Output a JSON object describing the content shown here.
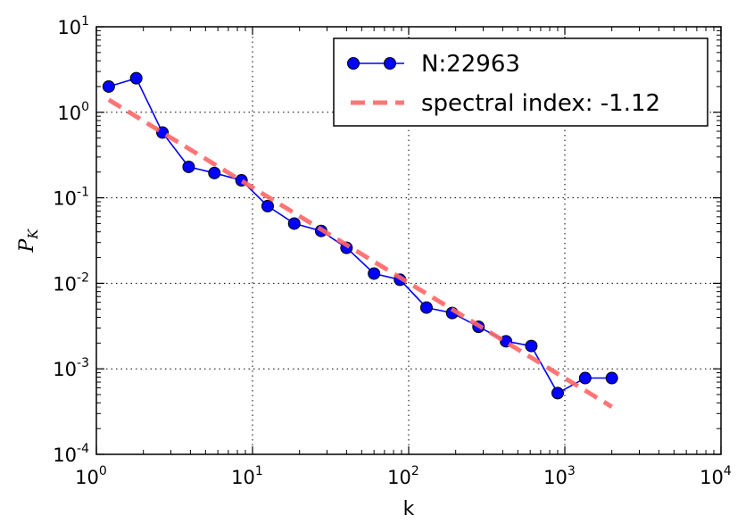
{
  "chart_data": {
    "type": "line",
    "xscale": "log",
    "yscale": "log",
    "xlim": [
      1,
      10000
    ],
    "ylim": [
      0.0001,
      10
    ],
    "xlabel": "k",
    "ylabel": "P",
    "ylabel_subscript": "K",
    "grid": true,
    "legend_position": "top-right",
    "x_ticks": [
      {
        "base": "10",
        "exp": "0"
      },
      {
        "base": "10",
        "exp": "1"
      },
      {
        "base": "10",
        "exp": "2"
      },
      {
        "base": "10",
        "exp": "3"
      },
      {
        "base": "10",
        "exp": "4"
      }
    ],
    "y_ticks": [
      {
        "base": "10",
        "exp": "-4"
      },
      {
        "base": "10",
        "exp": "-3"
      },
      {
        "base": "10",
        "exp": "-2"
      },
      {
        "base": "10",
        "exp": "-1"
      },
      {
        "base": "10",
        "exp": "0"
      },
      {
        "base": "10",
        "exp": "1"
      }
    ],
    "series": [
      {
        "name": "N:22963",
        "style": "line-markers",
        "color": "#0000ff",
        "x": [
          1.2,
          1.8,
          2.65,
          3.9,
          5.7,
          8.5,
          12.5,
          18.5,
          27.5,
          40,
          60,
          88,
          130,
          190,
          280,
          420,
          610,
          900,
          1350,
          2000
        ],
        "y": [
          2.0,
          2.5,
          0.58,
          0.23,
          0.195,
          0.16,
          0.08,
          0.05,
          0.041,
          0.026,
          0.013,
          0.011,
          0.0052,
          0.0045,
          0.0031,
          0.0021,
          0.00185,
          0.00052,
          0.00078,
          0.00078
        ]
      },
      {
        "name": "spectral index: -1.12",
        "style": "dashed",
        "color": "#ff6666",
        "x": [
          1.2,
          2000
        ],
        "y": [
          1.4,
          0.00036
        ]
      }
    ]
  }
}
